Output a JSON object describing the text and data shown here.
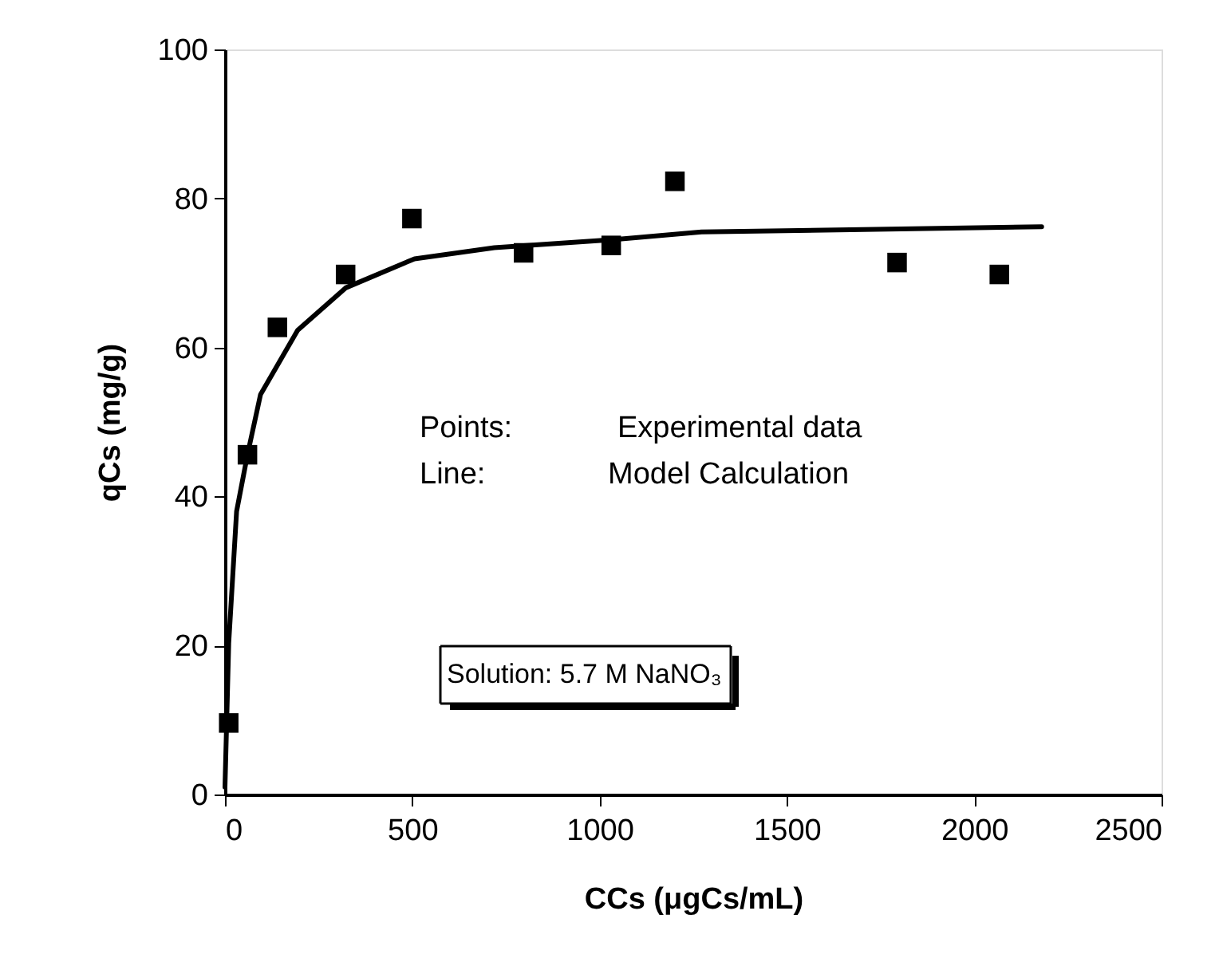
{
  "chart_data": {
    "type": "scatter",
    "xlabel": "CCs (μgCs/mL)",
    "ylabel": "qCs (mg/g)",
    "xlim": [
      0,
      2500
    ],
    "xticks": [
      0,
      500,
      1000,
      1500,
      2000,
      2500
    ],
    "ylim": [
      0,
      100
    ],
    "yticks": [
      0,
      20,
      40,
      60,
      80,
      100
    ],
    "grid": false,
    "legend": false,
    "series": [
      {
        "marker": "square",
        "color": "#000000",
        "x": [
          10,
          60,
          140,
          322,
          499,
          797,
          1031,
          1201,
          1794,
          2067
        ],
        "values": [
          9.6,
          45.6,
          62.7,
          69.8,
          77.3,
          72.7,
          73.7,
          82.3,
          71.4,
          69.8
        ]
      },
      {
        "type": "line",
        "line_style": "solid",
        "marker": "none",
        "color": "#000000",
        "x": [
          0,
          10,
          31,
          60,
          95,
          194,
          322,
          506,
          719,
          1017,
          1272,
          1668,
          2180
        ],
        "values": [
          1,
          20.3,
          38,
          45.6,
          53.7,
          62.3,
          68,
          71.9,
          73.4,
          74.4,
          75.5,
          75.8,
          76.2
        ]
      }
    ],
    "annotations": [
      "Points:",
      "Experimental data",
      "Line:",
      "Model Calculation",
      "Solution: 5.7 M NaNO₃"
    ]
  }
}
